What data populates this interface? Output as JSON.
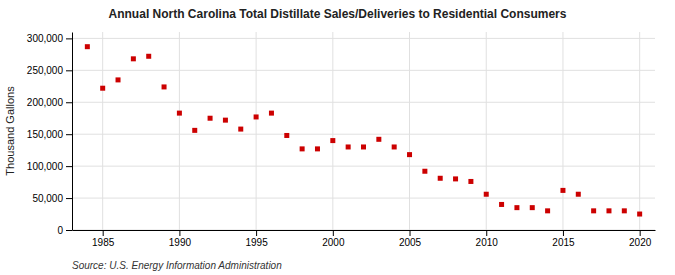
{
  "chart_data": {
    "type": "scatter",
    "title": "Annual North Carolina Total Distillate Sales/Deliveries to Residential Consumers",
    "ylabel": "Thousand Gallons",
    "annotations": [
      "Source: U.S. Energy Information Administration"
    ],
    "x": [
      1984,
      1985,
      1986,
      1987,
      1988,
      1989,
      1990,
      1991,
      1992,
      1993,
      1994,
      1995,
      1996,
      1997,
      1998,
      1999,
      2000,
      2001,
      2002,
      2003,
      2004,
      2005,
      2006,
      2007,
      2008,
      2009,
      2010,
      2011,
      2012,
      2013,
      2014,
      2015,
      2016,
      2017,
      2018,
      2019,
      2020
    ],
    "values": [
      287000,
      222000,
      235000,
      268000,
      272000,
      224000,
      183000,
      156000,
      175000,
      172000,
      158000,
      177000,
      183000,
      148000,
      127000,
      127000,
      140000,
      130000,
      130000,
      142000,
      130000,
      118000,
      92000,
      81000,
      80000,
      76000,
      56000,
      40000,
      35000,
      35000,
      30000,
      62000,
      56000,
      30000,
      30000,
      30000,
      25000
    ],
    "color": "#cc0000",
    "marker": "square",
    "xlim": [
      1983,
      2021
    ],
    "xticks": [
      1985,
      1990,
      1995,
      2000,
      2005,
      2010,
      2015,
      2020
    ],
    "ylim": [
      0,
      310000
    ],
    "yticks": [
      0,
      {
        "value": 50000,
        "label": "50,000"
      },
      {
        "value": 100000,
        "label": "100,000"
      },
      {
        "value": 150000,
        "label": "150,000"
      },
      {
        "value": 200000,
        "label": "200,000"
      },
      {
        "value": 250000,
        "label": "250,000"
      },
      {
        "value": 300000,
        "label": "300,000"
      }
    ],
    "grid": true
  }
}
